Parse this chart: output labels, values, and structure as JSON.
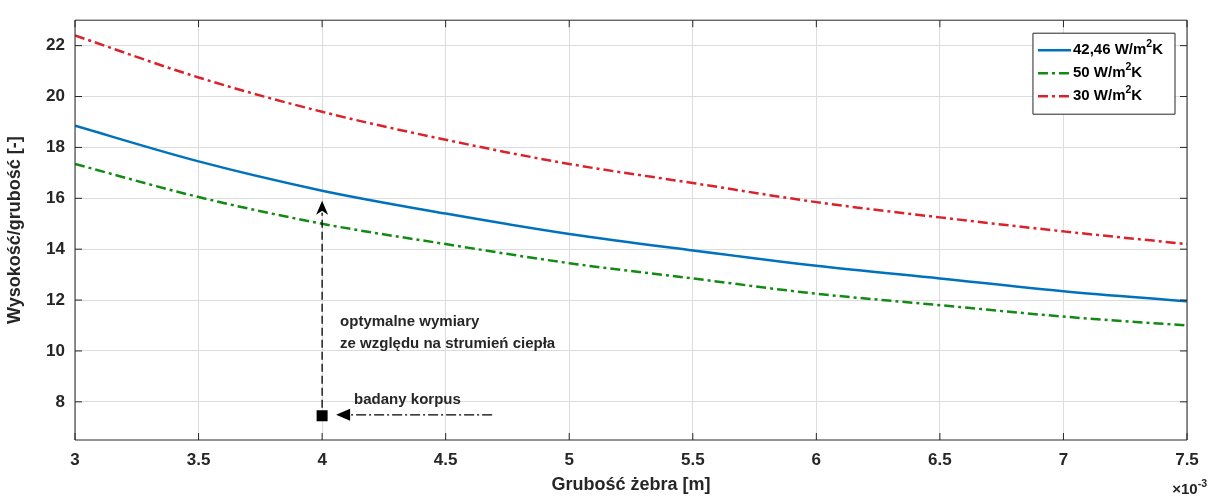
{
  "chart_data": {
    "type": "line",
    "xlabel": "Grubość żebra [m]",
    "ylabel": "Wysokość/grubość [-]",
    "xlim": [
      3,
      7.5
    ],
    "xticks": [
      3,
      3.5,
      4,
      4.5,
      5,
      5.5,
      6,
      6.5,
      7,
      7.5
    ],
    "ylim": [
      6.5,
      23
    ],
    "yticks": [
      8,
      10,
      12,
      14,
      16,
      18,
      20,
      22
    ],
    "x": [
      3,
      3.5,
      4,
      4.5,
      5,
      5.5,
      6,
      6.5,
      7,
      7.5
    ],
    "series": [
      {
        "name": "42,46 W/m$^{2}$K",
        "color": "#0072bd",
        "line_style": "solid",
        "values": [
          18.85,
          17.45,
          16.3,
          15.4,
          14.6,
          13.95,
          13.35,
          12.85,
          12.35,
          11.95
        ]
      },
      {
        "name": "50 W/m$^{2}$K",
        "color": "#138a13",
        "line_style": "dashdot",
        "values": [
          17.35,
          16.05,
          15.0,
          14.2,
          13.45,
          12.85,
          12.25,
          11.8,
          11.35,
          11.0
        ]
      },
      {
        "name": "30 W/m$^{2}$K",
        "color": "#d9222a",
        "line_style": "dashdot",
        "values": [
          22.4,
          20.75,
          19.4,
          18.3,
          17.35,
          16.6,
          15.85,
          15.25,
          14.7,
          14.2
        ]
      },
      {
        "type": "scatter",
        "marker": "square",
        "color": "#000000",
        "x": [
          4
        ],
        "values": [
          7.45
        ]
      }
    ],
    "annotations": [
      "optymalne wymiary",
      "ze względu na strumień ciepła",
      {
        "text": "badany korpus",
        "x": 4,
        "y": 7.45
      },
      "×10$^{-3}$"
    ],
    "grid": true,
    "legend": "top right",
    "marker": "none"
  }
}
